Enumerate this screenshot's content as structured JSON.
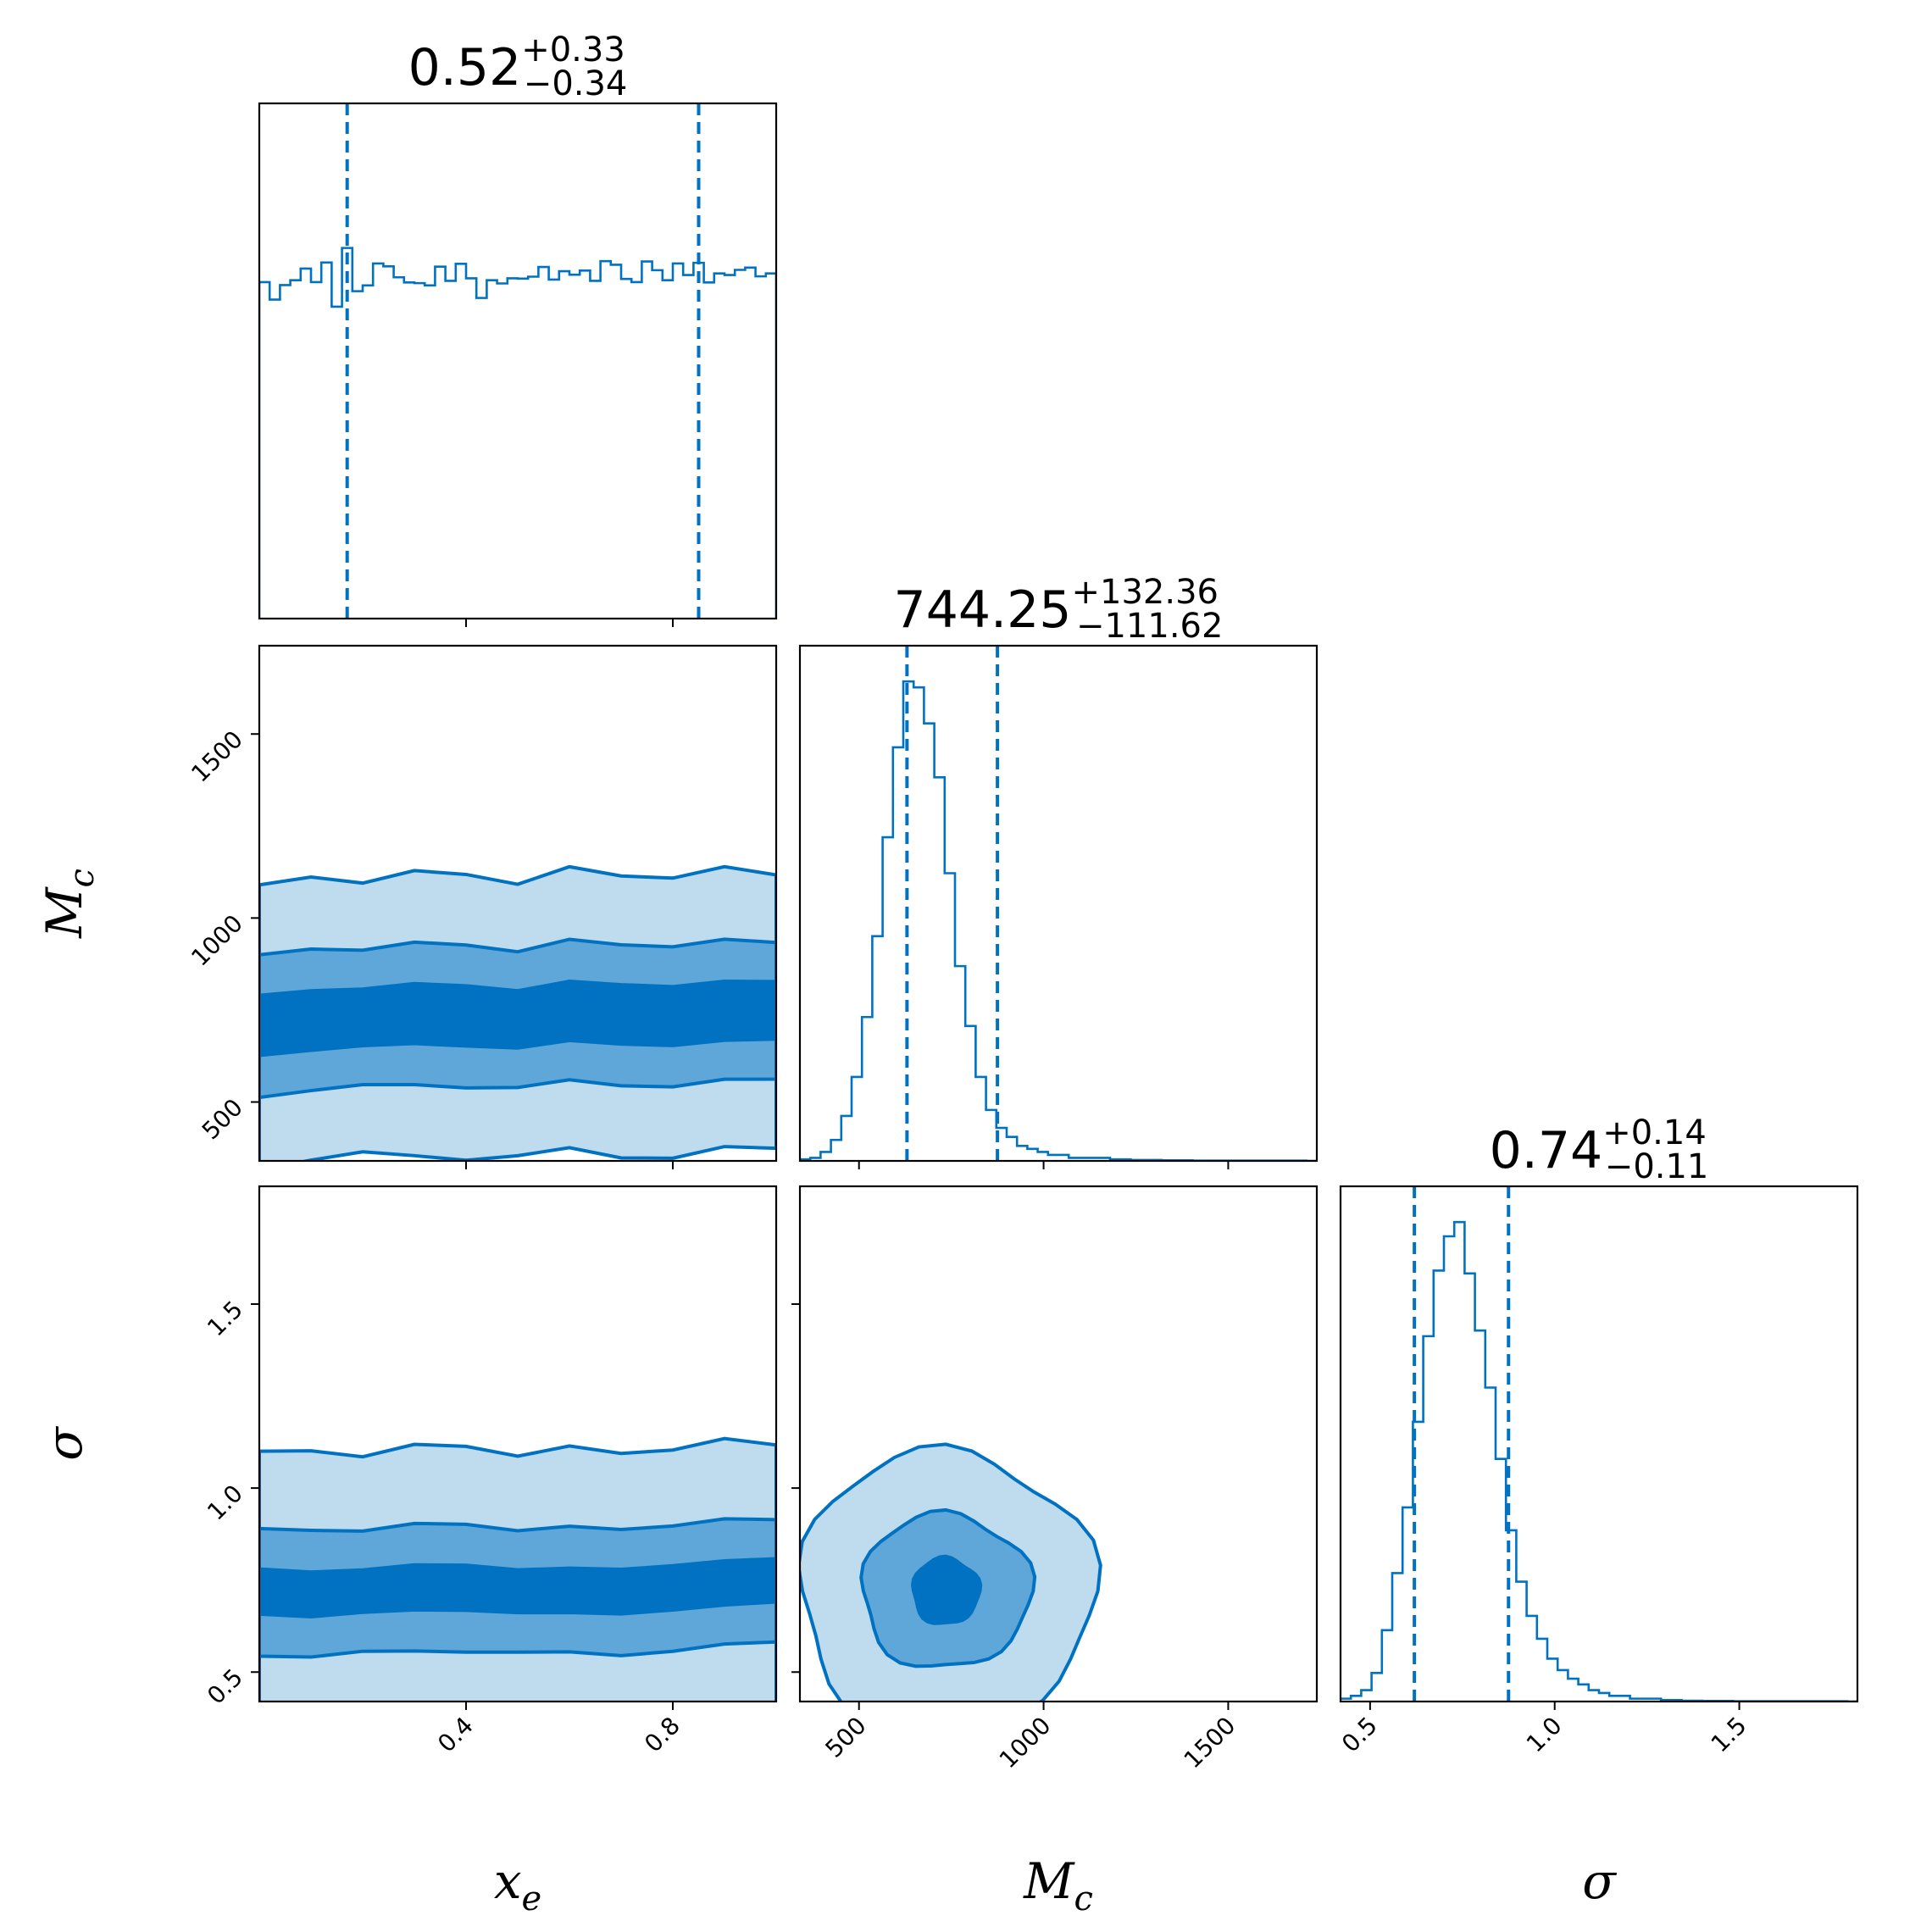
{
  "chart_data": {
    "type": "corner",
    "color": "#0072c1",
    "parameters": [
      {
        "key": "x_e",
        "label": "x",
        "label_sub": "e",
        "range": [
          0.0,
          1.0
        ],
        "ticks": [
          0.4,
          0.8
        ],
        "tick_labels": [
          "0.4",
          "0.8"
        ]
      },
      {
        "key": "M_c",
        "label": "M",
        "label_sub": "c",
        "range": [
          340,
          1740
        ],
        "ticks": [
          500,
          1000,
          1500
        ],
        "tick_labels": [
          "500",
          "1000",
          "1500"
        ]
      },
      {
        "key": "sigma",
        "label": "σ",
        "label_sub": "",
        "range": [
          0.42,
          1.82
        ],
        "ticks": [
          0.5,
          1.0,
          1.5
        ],
        "tick_labels": [
          "0.5",
          "1.0",
          "1.5"
        ]
      }
    ],
    "titles": [
      {
        "median": "0.52",
        "plus": "+0.33",
        "minus": "−0.34"
      },
      {
        "median": "744.25",
        "plus": "+132.36",
        "minus": "−111.62"
      },
      {
        "median": "0.74",
        "plus": "+0.14",
        "minus": "−0.11"
      }
    ],
    "quantile_lines": [
      [
        0.17,
        0.85
      ],
      [
        630,
        875
      ],
      [
        0.62,
        0.875
      ]
    ],
    "histograms": [
      {
        "param": "x_e",
        "bin_start": 0.0,
        "bin_width": 0.02,
        "counts": [
          1043,
          989,
          1034,
          1049,
          1085,
          1043,
          1104,
          967,
          1149,
          1015,
          1033,
          1101,
          1092,
          1058,
          1042,
          1040,
          1033,
          1091,
          1047,
          1100,
          1055,
          994,
          1049,
          1039,
          1055,
          1054,
          1060,
          1090,
          1051,
          1077,
          1066,
          1079,
          1047,
          1108,
          1097,
          1053,
          1043,
          1107,
          1080,
          1049,
          1101,
          1065,
          1103,
          1042,
          1070,
          1065,
          1081,
          1088,
          1061,
          1070
        ]
      },
      {
        "param": "M_c",
        "bin_start": 340,
        "bin_width": 28,
        "counts": [
          0.5,
          1,
          3,
          7,
          15,
          28,
          48,
          75,
          108,
          138,
          160,
          158,
          146,
          128,
          96,
          65,
          45,
          28,
          17,
          11,
          8,
          5,
          4,
          3,
          2,
          2,
          1,
          1,
          1,
          1,
          0.5,
          0.5,
          0.3,
          0.3,
          0.3,
          0.2,
          0.2,
          0.2,
          0.1,
          0.1,
          0.1,
          0.1,
          0.1,
          0.1,
          0.1,
          0.1,
          0.1,
          0.1,
          0.1,
          0
        ]
      },
      {
        "param": "sigma",
        "bin_start": 0.42,
        "bin_width": 0.028,
        "counts": [
          1,
          2,
          4,
          10,
          25,
          45,
          68,
          98,
          128,
          151,
          163,
          168,
          150,
          130,
          110,
          85,
          60,
          42,
          30,
          22,
          15,
          11,
          8,
          6,
          4,
          3,
          2,
          2,
          1,
          1,
          1,
          0.5,
          0.5,
          0.3,
          0.3,
          0.2,
          0.2,
          0.2,
          0.1,
          0.1,
          0.1,
          0.1,
          0.1,
          0.1,
          0.1,
          0.1,
          0.1,
          0.1,
          0.1,
          0
        ]
      }
    ],
    "contours": [
      {
        "x": "x_e",
        "y": "M_c",
        "band_centers": [
          [
            0.0,
            710
          ],
          [
            0.1,
            720
          ],
          [
            0.2,
            730
          ],
          [
            0.3,
            740
          ],
          [
            0.4,
            735
          ],
          [
            0.5,
            725
          ],
          [
            0.6,
            745
          ],
          [
            0.7,
            740
          ],
          [
            0.8,
            735
          ],
          [
            0.9,
            745
          ],
          [
            1.0,
            750
          ]
        ],
        "levels": [
          {
            "half_width": 80,
            "opacity": 1.0
          },
          {
            "half_width": 190,
            "opacity": 0.5
          },
          {
            "half_width": 380,
            "opacity": 0.25
          }
        ]
      },
      {
        "x": "x_e",
        "y": "sigma",
        "band_centers": [
          [
            0.0,
            0.72
          ],
          [
            0.1,
            0.71
          ],
          [
            0.2,
            0.72
          ],
          [
            0.3,
            0.73
          ],
          [
            0.4,
            0.73
          ],
          [
            0.5,
            0.72
          ],
          [
            0.6,
            0.72
          ],
          [
            0.7,
            0.72
          ],
          [
            0.8,
            0.73
          ],
          [
            0.9,
            0.74
          ],
          [
            1.0,
            0.75
          ]
        ],
        "levels": [
          {
            "half_width": 0.06,
            "opacity": 1.0
          },
          {
            "half_width": 0.17,
            "opacity": 0.5
          },
          {
            "half_width": 0.38,
            "opacity": 0.25
          }
        ]
      },
      {
        "x": "M_c",
        "y": "sigma",
        "center": [
          735,
          0.72
        ],
        "levels": [
          {
            "rx": 90,
            "ry": 0.09,
            "opacity": 1.0
          },
          {
            "rx": 230,
            "ry": 0.21,
            "opacity": 0.5
          },
          {
            "rx": 400,
            "ry": 0.38,
            "opacity": 0.25
          }
        ]
      }
    ]
  }
}
